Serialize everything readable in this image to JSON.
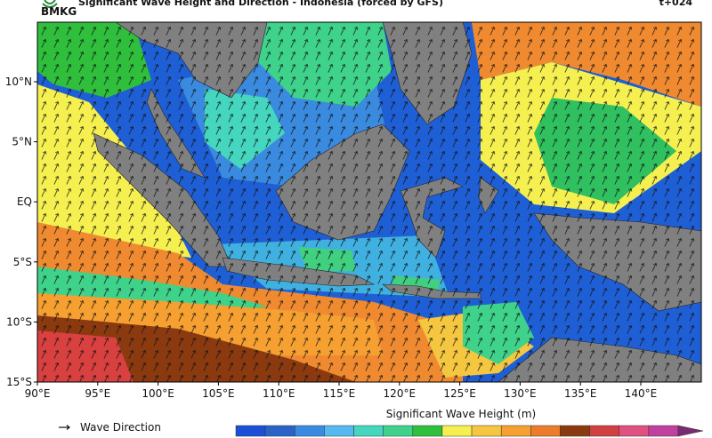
{
  "header": {
    "logo": "BMKG",
    "title": "Significant Wave Height and Direction - Indonesia (forced by GFS)",
    "time": "t+024"
  },
  "axes": {
    "lat_labels": [
      "10°N",
      "5°N",
      "EQ",
      "5°S",
      "10°S",
      "15°S"
    ],
    "lon_labels": [
      "90°E",
      "95°E",
      "100°E",
      "105°E",
      "110°E",
      "115°E",
      "120°E",
      "125°E",
      "130°E",
      "135°E",
      "140°E"
    ]
  },
  "legend": {
    "arrow_label": "Wave Direction",
    "colorbar_title": "Significant Wave Height (m)"
  }
}
